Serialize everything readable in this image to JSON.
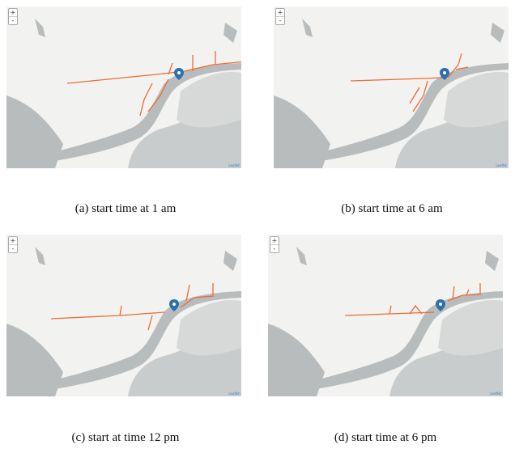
{
  "panels": [
    {
      "caption": "(a)  start time at 1 am"
    },
    {
      "caption": "(b)  start time at 6 am"
    },
    {
      "caption": "(c)  start at time 12 pm"
    },
    {
      "caption": "(d)  start time at 6 pm"
    }
  ],
  "map": {
    "zoom_in": "+",
    "zoom_out": "-",
    "attribution": "Leaflet",
    "colors": {
      "land": "#f2f2f0",
      "water": "#b8bcbd",
      "route": "#f06a34",
      "marker": "#2a6fb0"
    },
    "marker_icon": "map-pin-icon"
  }
}
